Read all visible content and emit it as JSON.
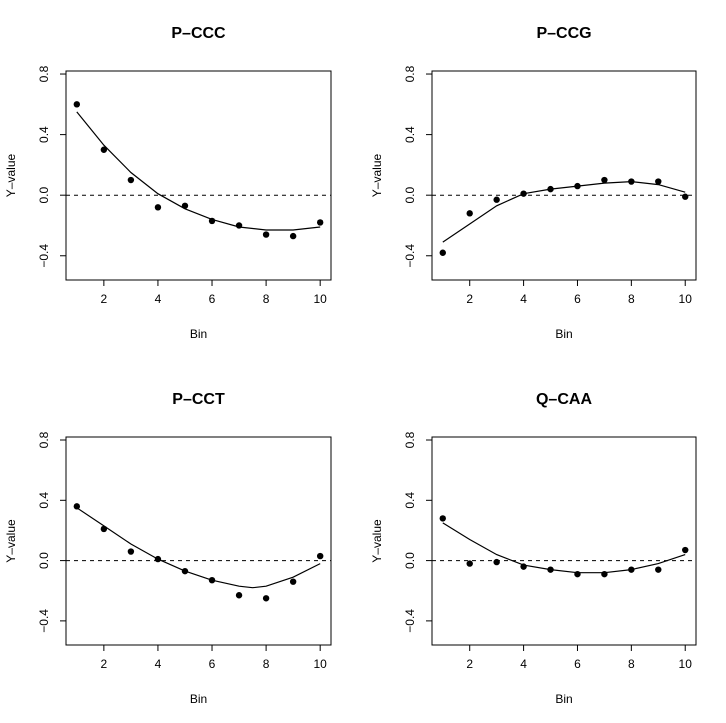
{
  "chart_data": [
    {
      "type": "scatter",
      "title": "P–CCC",
      "xlabel": "Bin",
      "ylabel": "Y–value",
      "xlim": [
        0.6,
        10.4
      ],
      "ylim": [
        -0.56,
        0.82
      ],
      "xticks": [
        "2",
        "4",
        "6",
        "8",
        "10"
      ],
      "yticks": [
        "−0.4",
        "0.0",
        "0.4",
        "0.8"
      ],
      "reference_line": {
        "y": 0.0,
        "style": "dashed"
      },
      "x": [
        1,
        2,
        3,
        4,
        5,
        6,
        7,
        8,
        9,
        10
      ],
      "y": [
        0.6,
        0.3,
        0.1,
        -0.08,
        -0.07,
        -0.17,
        -0.2,
        -0.26,
        -0.27,
        -0.18
      ],
      "fit": [
        [
          1,
          0.55
        ],
        [
          2,
          0.33
        ],
        [
          3,
          0.15
        ],
        [
          4,
          0.01
        ],
        [
          5,
          -0.09
        ],
        [
          6,
          -0.16
        ],
        [
          7,
          -0.21
        ],
        [
          8,
          -0.23
        ],
        [
          9,
          -0.23
        ],
        [
          10,
          -0.21
        ]
      ]
    },
    {
      "type": "scatter",
      "title": "P–CCG",
      "xlabel": "Bin",
      "ylabel": "Y–value",
      "xlim": [
        0.6,
        10.4
      ],
      "ylim": [
        -0.56,
        0.82
      ],
      "xticks": [
        "2",
        "4",
        "6",
        "8",
        "10"
      ],
      "yticks": [
        "−0.4",
        "0.0",
        "0.4",
        "0.8"
      ],
      "reference_line": {
        "y": 0.0,
        "style": "dashed"
      },
      "x": [
        1,
        2,
        3,
        4,
        5,
        6,
        7,
        8,
        9,
        10
      ],
      "y": [
        -0.38,
        -0.12,
        -0.03,
        0.01,
        0.04,
        0.06,
        0.1,
        0.09,
        0.09,
        -0.01
      ],
      "fit": [
        [
          1,
          -0.31
        ],
        [
          2,
          -0.19
        ],
        [
          3,
          -0.07
        ],
        [
          4,
          0.01
        ],
        [
          5,
          0.04
        ],
        [
          6,
          0.06
        ],
        [
          7,
          0.08
        ],
        [
          8,
          0.09
        ],
        [
          9,
          0.07
        ],
        [
          10,
          0.02
        ]
      ]
    },
    {
      "type": "scatter",
      "title": "P–CCT",
      "xlabel": "Bin",
      "ylabel": "Y–value",
      "xlim": [
        0.6,
        10.4
      ],
      "ylim": [
        -0.56,
        0.82
      ],
      "xticks": [
        "2",
        "4",
        "6",
        "8",
        "10"
      ],
      "yticks": [
        "−0.4",
        "0.0",
        "0.4",
        "0.8"
      ],
      "reference_line": {
        "y": 0.0,
        "style": "dashed"
      },
      "x": [
        1,
        2,
        3,
        4,
        5,
        6,
        7,
        8,
        9,
        10
      ],
      "y": [
        0.36,
        0.21,
        0.06,
        0.01,
        -0.07,
        -0.13,
        -0.23,
        -0.25,
        -0.14,
        0.03
      ],
      "fit": [
        [
          1,
          0.35
        ],
        [
          2,
          0.23
        ],
        [
          3,
          0.11
        ],
        [
          4,
          0.01
        ],
        [
          5,
          -0.07
        ],
        [
          6,
          -0.13
        ],
        [
          7,
          -0.17
        ],
        [
          7.5,
          -0.18
        ],
        [
          8,
          -0.17
        ],
        [
          9,
          -0.11
        ],
        [
          10,
          -0.02
        ]
      ]
    },
    {
      "type": "scatter",
      "title": "Q–CAA",
      "xlabel": "Bin",
      "ylabel": "Y–value",
      "xlim": [
        0.6,
        10.4
      ],
      "ylim": [
        -0.56,
        0.82
      ],
      "xticks": [
        "2",
        "4",
        "6",
        "8",
        "10"
      ],
      "yticks": [
        "−0.4",
        "0.0",
        "0.4",
        "0.8"
      ],
      "reference_line": {
        "y": 0.0,
        "style": "dashed"
      },
      "x": [
        1,
        2,
        3,
        4,
        5,
        6,
        7,
        8,
        9,
        10
      ],
      "y": [
        0.28,
        -0.02,
        -0.01,
        -0.04,
        -0.06,
        -0.09,
        -0.09,
        -0.06,
        -0.06,
        0.07
      ],
      "fit": [
        [
          1,
          0.25
        ],
        [
          2,
          0.14
        ],
        [
          3,
          0.04
        ],
        [
          4,
          -0.03
        ],
        [
          5,
          -0.06
        ],
        [
          6,
          -0.08
        ],
        [
          7,
          -0.08
        ],
        [
          8,
          -0.06
        ],
        [
          9,
          -0.02
        ],
        [
          10,
          0.04
        ]
      ]
    }
  ]
}
